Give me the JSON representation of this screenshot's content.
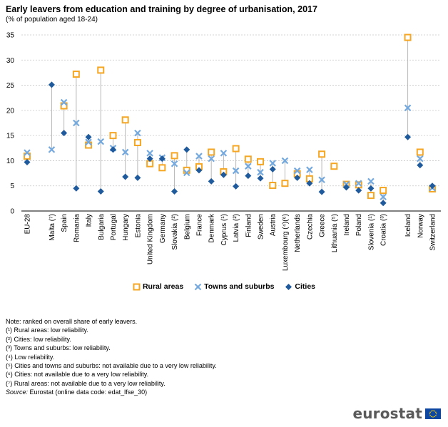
{
  "title": "Early leavers from education and training by degree of urbanisation, 2017",
  "subtitle": "(% of population aged 18-24)",
  "colors": {
    "rural": "#f5a623",
    "towns": "#74a9df",
    "cities": "#1f5a9c",
    "stem": "#b8b8b8",
    "grid": "#c8c8c8"
  },
  "legend": {
    "rural": "Rural areas",
    "towns": "Towns and suburbs",
    "cities": "Cities"
  },
  "notes": [
    "Note: ranked on overall share of early leavers.",
    "(¹) Rural areas: low reliability.",
    "(²) Cities: low reliability.",
    "(³) Towns and suburbs: low reliability.",
    "(⁴) Low reliability.",
    "(⁵) Cities and towns and suburbs: not available due to a very low reliability.",
    "(⁶) Cities: not available due to a very low reliability.",
    "(⁷) Rural areas: not available due to a very low reliability."
  ],
  "source": {
    "label": "Source:",
    "text": " Eurostat (online data code: edat_lfse_30)"
  },
  "logo_text": "eurostat",
  "chart_data": {
    "type": "scatter",
    "title": "Early leavers from education and training by degree of urbanisation, 2017",
    "ylim": [
      0,
      35
    ],
    "yticks": [
      0,
      5,
      10,
      15,
      20,
      25,
      30,
      35
    ],
    "categories": [
      "EU-28",
      "Malta (⁷)",
      "Spain",
      "Romania",
      "Italy",
      "Bulgaria",
      "Portugal",
      "Hungary",
      "Estonia",
      "United Kingdom",
      "Germany",
      "Slovakia (²)",
      "Belgium",
      "France",
      "Denmark",
      "Cyprus (¹)",
      "Latvia (²)",
      "Finland",
      "Sweden",
      "Austria",
      "Luxembourg (⁴)(⁶)",
      "Netherlands",
      "Czechia",
      "Greece",
      "Lithuania (⁵)",
      "Ireland",
      "Poland",
      "Slovenia (¹)",
      "Croatia (³)",
      "Iceland",
      "Norway",
      "Switzerland"
    ],
    "gap_after": [
      0,
      28
    ],
    "series": [
      {
        "name": "Rural areas",
        "key": "rural",
        "marker": "square",
        "values": [
          10.9,
          null,
          20.9,
          27.2,
          13.1,
          28.0,
          15.0,
          18.1,
          13.6,
          9.4,
          8.6,
          11.0,
          8.1,
          8.8,
          11.7,
          7.8,
          12.4,
          10.3,
          9.8,
          5.1,
          5.5,
          7.4,
          6.4,
          11.3,
          8.9,
          5.3,
          5.2,
          3.1,
          4.1,
          34.5,
          11.7,
          4.4
        ]
      },
      {
        "name": "Towns and suburbs",
        "key": "towns",
        "marker": "cross",
        "values": [
          11.6,
          12.2,
          21.6,
          17.5,
          13.7,
          13.8,
          12.5,
          11.7,
          15.5,
          11.5,
          10.6,
          9.4,
          7.6,
          10.9,
          10.4,
          11.5,
          8.0,
          8.9,
          7.7,
          9.5,
          10.0,
          8.0,
          8.2,
          6.2,
          null,
          5.3,
          5.5,
          5.9,
          2.8,
          20.5,
          10.4,
          4.6
        ]
      },
      {
        "name": "Cities",
        "key": "cities",
        "marker": "diamond",
        "values": [
          9.7,
          25.1,
          15.5,
          4.5,
          14.7,
          3.9,
          12.2,
          6.8,
          6.6,
          10.4,
          10.4,
          3.9,
          12.2,
          8.1,
          5.9,
          7.2,
          4.9,
          7.0,
          6.5,
          8.3,
          null,
          6.6,
          5.5,
          3.8,
          null,
          4.7,
          4.1,
          4.5,
          1.6,
          14.7,
          9.1,
          5.0
        ]
      }
    ]
  }
}
